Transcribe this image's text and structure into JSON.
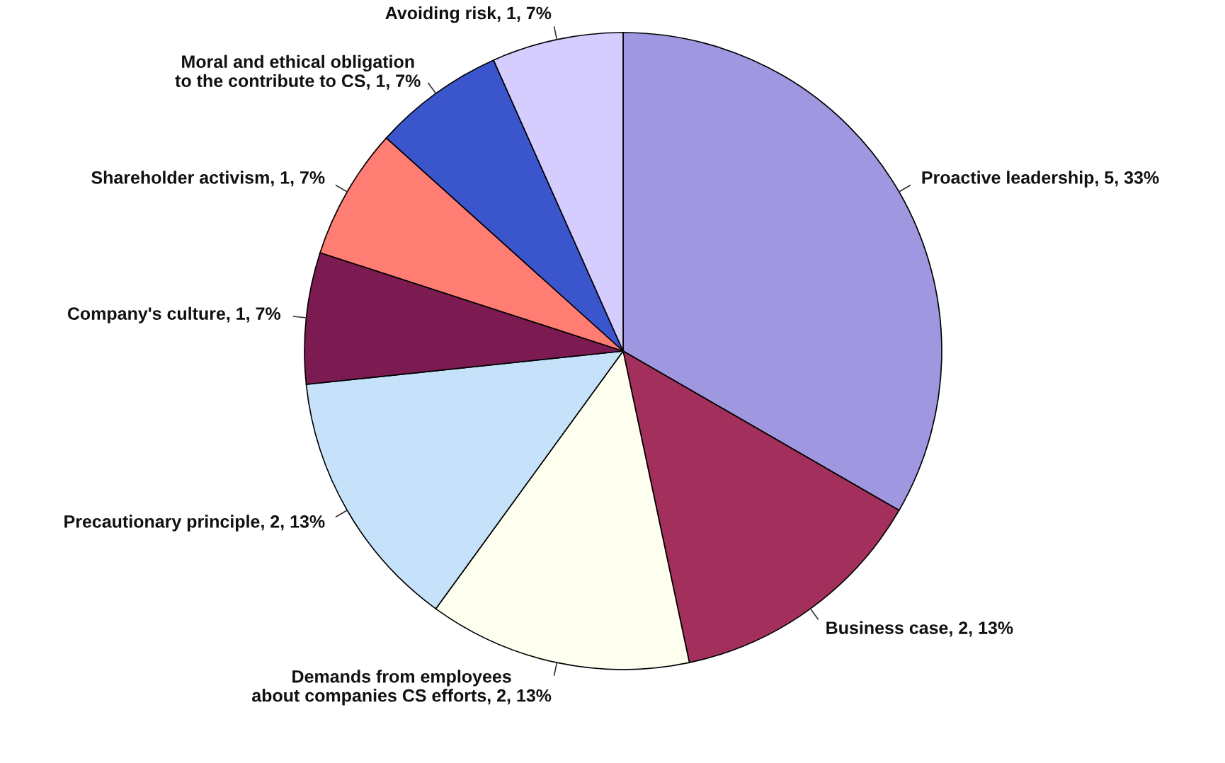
{
  "chart_data": {
    "type": "pie",
    "categories": [
      "Proactive leadership",
      "Business case",
      "Demands from employees\nabout companies CS efforts",
      "Precautionary principle",
      "Company's culture",
      "Shareholder activism",
      "Moral and ethical obligation\nto the contribute to CS",
      "Avoiding risk"
    ],
    "values": [
      5,
      2,
      2,
      2,
      1,
      1,
      1,
      1
    ],
    "value_labels": [
      "5, 33%",
      "2, 13%",
      "2, 13%",
      "2, 13%",
      "1, 7%",
      "1, 7%",
      "1, 7%",
      "1, 7%"
    ],
    "colors": [
      "#9f97e0",
      "#a3305c",
      "#fffff0",
      "#c6e1fa",
      "#7b1b52",
      "#ff7d72",
      "#3b55cc",
      "#d6cdff"
    ]
  }
}
